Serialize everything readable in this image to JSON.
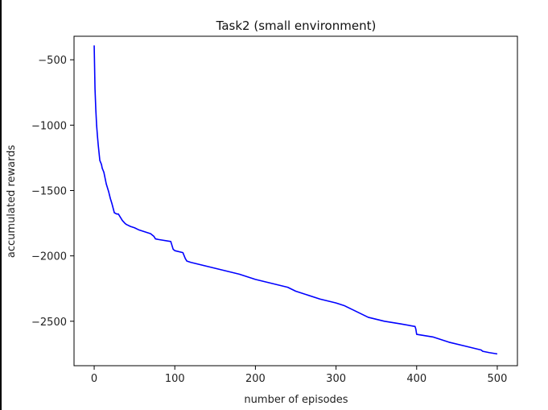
{
  "chart_data": {
    "type": "line",
    "title": "Task2 (small environment)",
    "xlabel": "number of episodes",
    "ylabel": "accumulated rewards",
    "xlim": [
      -25,
      525
    ],
    "ylim": [
      -2840,
      -320
    ],
    "xticks": [
      0,
      100,
      200,
      300,
      400,
      500
    ],
    "yticks": [
      -500,
      -1000,
      -1500,
      -2000,
      -2500
    ],
    "grid": false,
    "line_color": "#0000ff",
    "series": [
      {
        "x": [
          0,
          1,
          2,
          3,
          4,
          5,
          7,
          9,
          10,
          12,
          15,
          18,
          20,
          22,
          25,
          28,
          30,
          35,
          38,
          40,
          45,
          50,
          55,
          60,
          70,
          74,
          76,
          80,
          95,
          98,
          100,
          110,
          113,
          115,
          120,
          140,
          160,
          180,
          190,
          200,
          220,
          240,
          250,
          260,
          280,
          300,
          310,
          320,
          340,
          360,
          380,
          398,
          399,
          400,
          420,
          440,
          460,
          480,
          482,
          490,
          500
        ],
        "y": [
          -390,
          -720,
          -880,
          -1000,
          -1080,
          -1150,
          -1270,
          -1300,
          -1330,
          -1360,
          -1450,
          -1510,
          -1560,
          -1600,
          -1670,
          -1680,
          -1680,
          -1730,
          -1750,
          -1760,
          -1775,
          -1785,
          -1800,
          -1810,
          -1830,
          -1850,
          -1870,
          -1875,
          -1890,
          -1950,
          -1960,
          -1975,
          -2020,
          -2040,
          -2050,
          -2080,
          -2110,
          -2140,
          -2160,
          -2180,
          -2210,
          -2240,
          -2270,
          -2290,
          -2330,
          -2360,
          -2380,
          -2410,
          -2470,
          -2500,
          -2520,
          -2540,
          -2560,
          -2600,
          -2620,
          -2660,
          -2690,
          -2720,
          -2730,
          -2740,
          -2750
        ]
      }
    ]
  }
}
